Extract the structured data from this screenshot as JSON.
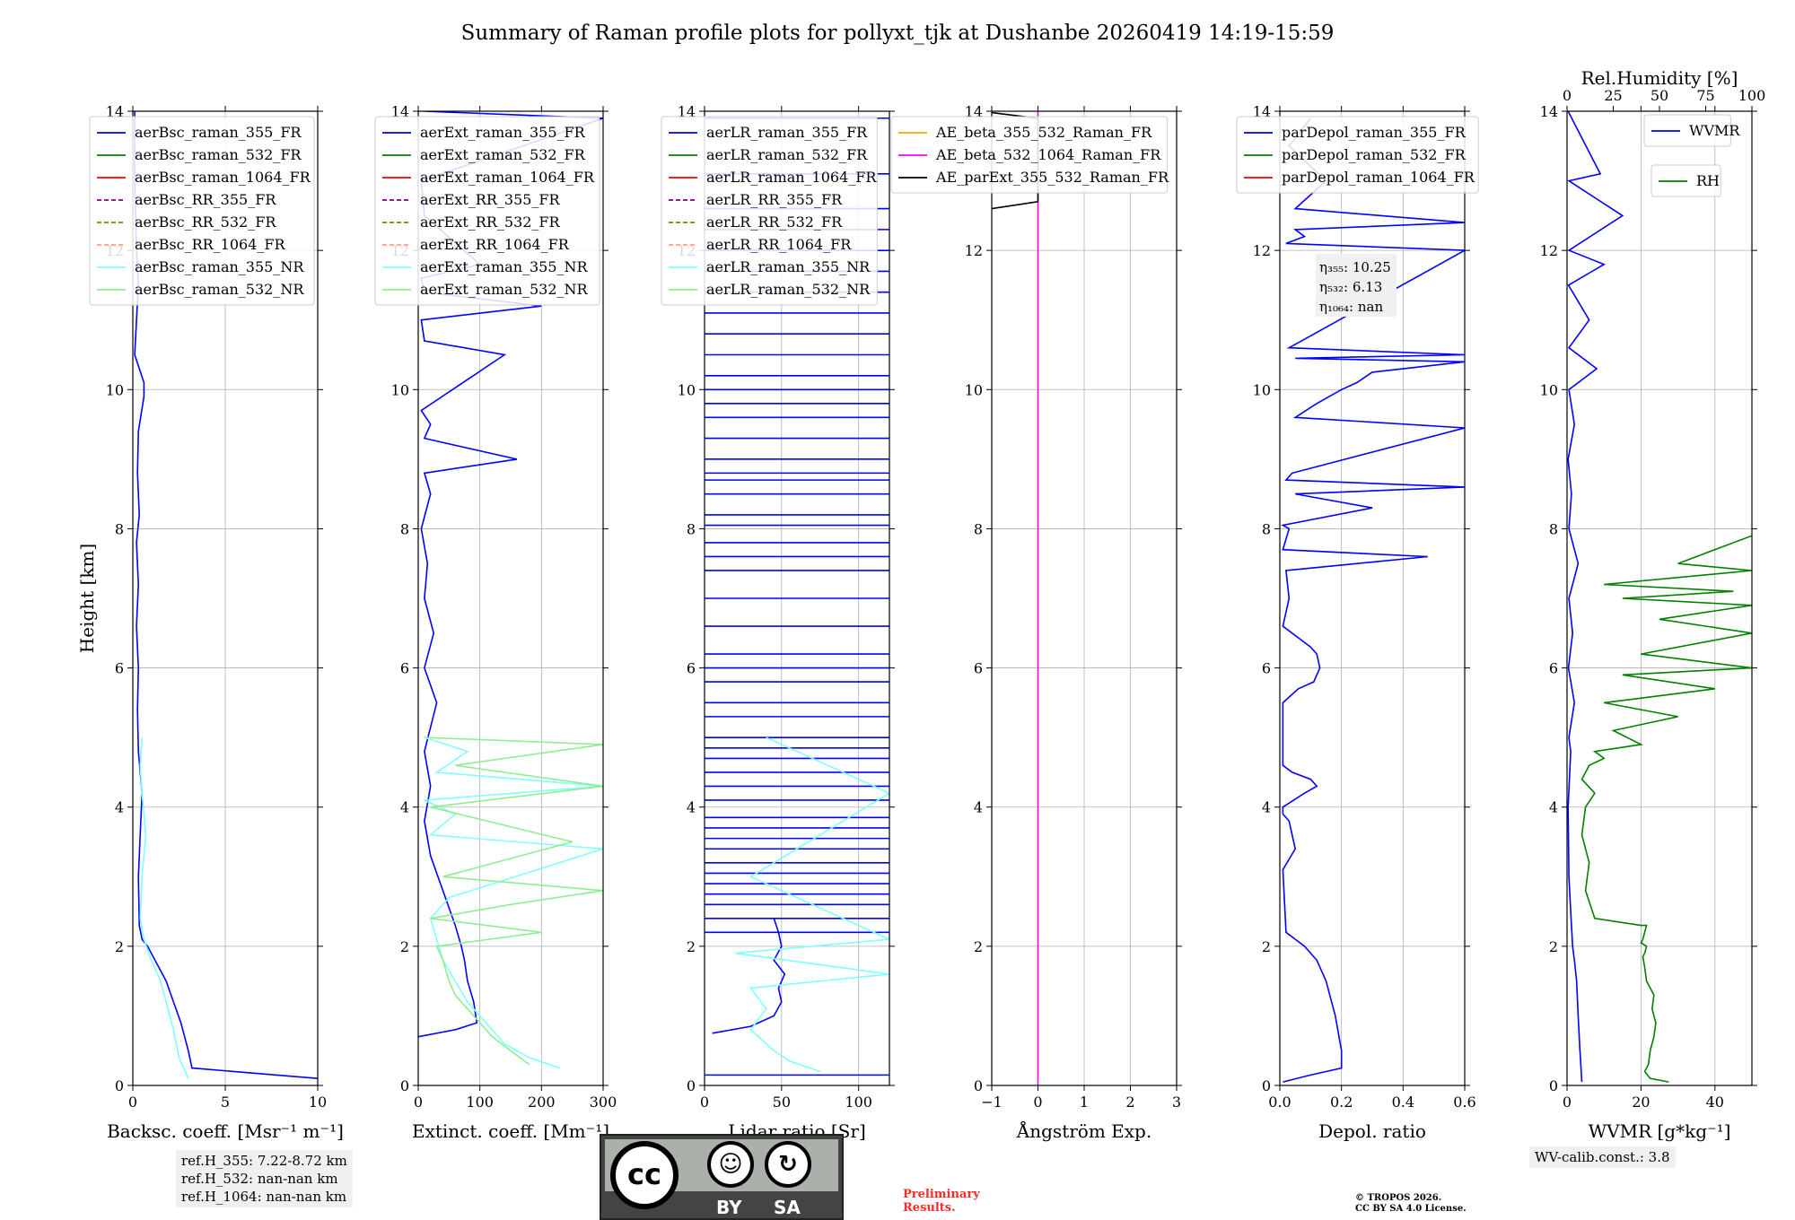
{
  "title": "Summary of Raman profile plots for pollyxt_tjk at Dushanbe 20260419 14:19-15:59",
  "chart_data": [
    {
      "type": "line",
      "id": "bsc",
      "xlabel": "Backsc. coeff. [Msr⁻¹ m⁻¹]",
      "ylabel": "Height [km]",
      "xlim": [
        0,
        10
      ],
      "xticks": [
        0,
        5,
        10
      ],
      "ylim": [
        0,
        14
      ],
      "yticks": [
        0,
        2,
        4,
        6,
        8,
        10,
        12,
        14
      ],
      "legend": [
        "aerBsc_raman_355_FR",
        "aerBsc_raman_532_FR",
        "aerBsc_raman_1064_FR",
        "aerBsc_RR_355_FR",
        "aerBsc_RR_532_FR",
        "aerBsc_RR_1064_FR",
        "aerBsc_raman_355_NR",
        "aerBsc_raman_532_NR"
      ],
      "legend_colors": [
        "#0000ff",
        "#008000",
        "#ff0000",
        "#800080",
        "#808000",
        "#ffa07a",
        "#7fffff",
        "#90ee90"
      ],
      "legend_dashed": [
        false,
        false,
        false,
        true,
        true,
        true,
        false,
        false
      ],
      "series": [
        {
          "name": "aerBsc_raman_355_FR",
          "color": "#0000ff",
          "x": [
            10,
            3.2,
            3.0,
            2.6,
            2.2,
            1.8,
            1.2,
            0.8,
            0.5,
            0.35,
            0.3,
            0.4,
            0.5,
            0.3,
            0.25,
            0.3,
            0.2,
            0.3,
            0.2,
            0.35,
            0.25,
            0.3,
            0.6,
            0.6,
            0.1,
            0.2,
            0.3,
            0.2,
            0.1,
            0.1
          ],
          "y": [
            0.1,
            0.25,
            0.5,
            0.9,
            1.2,
            1.5,
            1.8,
            2.0,
            2.1,
            2.3,
            3.0,
            3.6,
            4.2,
            4.8,
            5.4,
            6.0,
            6.6,
            7.2,
            7.8,
            8.2,
            8.8,
            9.4,
            9.9,
            10.1,
            10.5,
            11.0,
            11.5,
            12.0,
            13.0,
            14.0
          ]
        },
        {
          "name": "aerBsc_raman_355_NR",
          "color": "#7fffff",
          "x": [
            3.0,
            2.5,
            2.2,
            1.8,
            1.5,
            1.0,
            0.6,
            0.4,
            0.5,
            0.7,
            0.5,
            0.4,
            0.5
          ],
          "y": [
            0.1,
            0.4,
            0.8,
            1.2,
            1.5,
            1.8,
            2.1,
            2.4,
            3.0,
            3.6,
            4.2,
            4.6,
            5.0
          ]
        }
      ]
    },
    {
      "type": "line",
      "id": "ext",
      "xlabel": "Extinct. coeff. [Mm⁻¹]",
      "xlim": [
        0,
        300
      ],
      "xticks": [
        0,
        100,
        200,
        300
      ],
      "ylim": [
        0,
        14
      ],
      "yticks": [
        0,
        2,
        4,
        6,
        8,
        10,
        12,
        14
      ],
      "legend": [
        "aerExt_raman_355_FR",
        "aerExt_raman_532_FR",
        "aerExt_raman_1064_FR",
        "aerExt_RR_355_FR",
        "aerExt_RR_532_FR",
        "aerExt_RR_1064_FR",
        "aerExt_raman_355_NR",
        "aerExt_raman_532_NR"
      ],
      "legend_colors": [
        "#0000ff",
        "#008000",
        "#ff0000",
        "#800080",
        "#808000",
        "#ffa07a",
        "#7fffff",
        "#90ee90"
      ],
      "legend_dashed": [
        false,
        false,
        false,
        true,
        true,
        true,
        false,
        false
      ],
      "series": [
        {
          "name": "aerExt_raman_355_FR",
          "color": "#0000ff",
          "x": [
            0,
            60,
            95,
            90,
            80,
            75,
            70,
            60,
            40,
            20,
            10,
            20,
            10,
            30,
            10,
            25,
            10,
            15,
            5,
            20,
            10,
            160,
            10,
            20,
            5,
            140,
            10,
            5,
            200,
            10,
            5,
            100,
            10,
            5,
            300,
            10
          ],
          "y": [
            0.7,
            0.8,
            0.9,
            1.2,
            1.5,
            1.8,
            2.0,
            2.3,
            2.8,
            3.3,
            3.8,
            4.3,
            4.8,
            5.5,
            6.0,
            6.5,
            7.0,
            7.5,
            8.0,
            8.5,
            8.8,
            9.0,
            9.3,
            9.5,
            9.7,
            10.5,
            10.7,
            11.0,
            11.2,
            11.4,
            11.6,
            11.8,
            12.5,
            13.0,
            13.9,
            14.0
          ]
        },
        {
          "name": "aerExt_raman_355_NR",
          "color": "#7fffff",
          "x": [
            230,
            180,
            140,
            120,
            100,
            80,
            60,
            40,
            30,
            20,
            50,
            300,
            20,
            60,
            10,
            300,
            30,
            80,
            10
          ],
          "y": [
            0.25,
            0.4,
            0.6,
            0.8,
            1.0,
            1.2,
            1.5,
            1.8,
            2.1,
            2.4,
            2.7,
            3.4,
            3.6,
            3.9,
            4.1,
            4.3,
            4.5,
            4.8,
            5.0
          ]
        },
        {
          "name": "aerExt_raman_532_NR",
          "color": "#90ee90",
          "x": [
            180,
            150,
            120,
            100,
            80,
            60,
            50,
            40,
            30,
            200,
            20,
            150,
            300,
            40,
            250,
            20,
            300,
            60,
            300,
            10
          ],
          "y": [
            0.3,
            0.5,
            0.7,
            0.9,
            1.1,
            1.3,
            1.5,
            1.8,
            2.0,
            2.2,
            2.4,
            2.6,
            2.8,
            3.0,
            3.5,
            4.0,
            4.3,
            4.6,
            4.9,
            5.0
          ]
        }
      ]
    },
    {
      "type": "line",
      "id": "lr",
      "xlabel": "Lidar ratio [Sr]",
      "xlim": [
        0,
        120
      ],
      "xticks": [
        0,
        50,
        100
      ],
      "ylim": [
        0,
        14
      ],
      "yticks": [
        0,
        2,
        4,
        6,
        8,
        10,
        12,
        14
      ],
      "legend": [
        "aerLR_raman_355_FR",
        "aerLR_raman_532_FR",
        "aerLR_raman_1064_FR",
        "aerLR_RR_355_FR",
        "aerLR_RR_532_FR",
        "aerLR_RR_1064_FR",
        "aerLR_raman_355_NR",
        "aerLR_raman_532_NR"
      ],
      "legend_colors": [
        "#0000ff",
        "#008000",
        "#ff0000",
        "#800080",
        "#808000",
        "#ffa07a",
        "#7fffff",
        "#90ee90"
      ],
      "legend_dashed": [
        false,
        false,
        false,
        true,
        true,
        true,
        false,
        false
      ],
      "hlines_355": [
        0.15,
        2.2,
        2.4,
        2.6,
        2.75,
        2.9,
        3.05,
        3.2,
        3.4,
        3.55,
        3.7,
        3.85,
        4.1,
        4.3,
        4.5,
        4.7,
        4.85,
        5.0,
        5.3,
        5.5,
        5.8,
        6.0,
        6.2,
        6.6,
        7.0,
        7.4,
        7.6,
        7.8,
        8.05,
        8.2,
        8.5,
        8.7,
        8.8,
        9.0,
        9.3,
        9.6,
        9.8,
        10.0,
        10.2,
        10.5,
        10.8,
        11.1,
        11.4,
        11.7,
        12.0,
        12.3,
        12.6,
        13.1,
        13.9
      ],
      "series": [
        {
          "name": "aerLR_raman_355_FR",
          "color": "#0000ff",
          "x": [
            5,
            30,
            45,
            50,
            48,
            52,
            45,
            50,
            48,
            45
          ],
          "y": [
            0.75,
            0.85,
            1.0,
            1.2,
            1.4,
            1.6,
            1.8,
            2.0,
            2.2,
            2.4
          ]
        },
        {
          "name": "aerLR_raman_355_NR",
          "color": "#7fffff",
          "x": [
            75,
            55,
            45,
            30,
            40,
            30,
            120,
            20,
            120,
            30,
            120,
            40
          ],
          "y": [
            0.2,
            0.35,
            0.5,
            0.8,
            1.1,
            1.4,
            1.6,
            1.9,
            2.1,
            3.0,
            4.2,
            5.0
          ]
        }
      ]
    },
    {
      "type": "line",
      "id": "ae",
      "xlabel": "Ångström Exp.",
      "xlim": [
        -1,
        3
      ],
      "xticks": [
        -1,
        0,
        1,
        2,
        3
      ],
      "ylim": [
        0,
        14
      ],
      "yticks": [
        0,
        2,
        4,
        6,
        8,
        10,
        12,
        14
      ],
      "legend": [
        "AE_beta_355_532_Raman_FR",
        "AE_beta_532_1064_Raman_FR",
        "AE_parExt_355_532_Raman_FR"
      ],
      "legend_colors": [
        "#ffa500",
        "#ff00ff",
        "#000000"
      ],
      "legend_dashed": [
        false,
        false,
        false
      ],
      "series": [
        {
          "name": "AE_beta_532_1064_Raman_FR",
          "color": "#ff00ff",
          "x": [
            0,
            0
          ],
          "y": [
            0,
            14
          ]
        },
        {
          "name": "AE_parExt_355_532_Raman_FR",
          "color": "#000000",
          "x": [
            -1,
            0,
            0,
            0,
            -1
          ],
          "y": [
            12.6,
            12.7,
            13.0,
            13.9,
            13.98
          ]
        }
      ]
    },
    {
      "type": "line",
      "id": "depol",
      "xlabel": "Depol. ratio",
      "xlim": [
        0,
        0.6
      ],
      "xticks": [
        0.0,
        0.2,
        0.4,
        0.6
      ],
      "xtick_labels": [
        "0.0",
        "0.2",
        "0.4",
        "0.6"
      ],
      "ylim": [
        0,
        14
      ],
      "yticks": [
        0,
        2,
        4,
        6,
        8,
        10,
        12,
        14
      ],
      "legend": [
        "parDepol_raman_355_FR",
        "parDepol_raman_532_FR",
        "parDepol_raman_1064_FR"
      ],
      "legend_colors": [
        "#0000ff",
        "#008000",
        "#ff0000"
      ],
      "legend_dashed": [
        false,
        false,
        false
      ],
      "annotation": {
        "l1": "η₃₅₅: 10.25",
        "l2": "η₅₃₂: 6.13",
        "l3": "η₁₀₆₄: nan"
      },
      "series": [
        {
          "name": "parDepol_raman_355_FR",
          "color": "#0000ff",
          "x": [
            0.01,
            0.1,
            0.2,
            0.2,
            0.18,
            0.15,
            0.12,
            0.08,
            0.05,
            0.02,
            0.01,
            0.05,
            0.04,
            0.03,
            0.01,
            0.01,
            0.08,
            0.12,
            0.1,
            0.04,
            0.01,
            0.01,
            0.06,
            0.11,
            0.13,
            0.12,
            0.1,
            0.07,
            0.04,
            0.01,
            0.03,
            0.02,
            0.48,
            0.01,
            0.03,
            0.01,
            0.3,
            0.05,
            0.6,
            0.02,
            0.04,
            0.6,
            0.05,
            0.12,
            0.2,
            0.25,
            0.3,
            0.6,
            0.05,
            0.6,
            0.03,
            0.6,
            0.02,
            0.08,
            0.05,
            0.6,
            0.05,
            0.15,
            0.03,
            0.1
          ],
          "y": [
            0.05,
            0.15,
            0.25,
            0.5,
            1.0,
            1.5,
            1.8,
            2.0,
            2.1,
            2.2,
            3.1,
            3.4,
            3.6,
            3.8,
            3.9,
            4.0,
            4.2,
            4.3,
            4.4,
            4.5,
            4.6,
            5.5,
            5.7,
            5.8,
            6.0,
            6.2,
            6.3,
            6.4,
            6.5,
            6.6,
            7.0,
            7.4,
            7.6,
            7.7,
            8.0,
            8.05,
            8.3,
            8.5,
            8.6,
            8.7,
            8.8,
            9.45,
            9.6,
            9.8,
            10.0,
            10.1,
            10.25,
            10.4,
            10.45,
            10.5,
            10.6,
            12.0,
            12.1,
            12.2,
            12.3,
            12.4,
            12.6,
            13.0,
            13.5,
            13.9
          ]
        }
      ]
    },
    {
      "type": "line",
      "id": "wv",
      "xlabel": "WVMR [g*kg⁻¹]",
      "x2label": "Rel.Humidity [%]",
      "xlim": [
        0,
        50
      ],
      "xticks": [
        0,
        20,
        40
      ],
      "x2lim": [
        0,
        100
      ],
      "x2ticks": [
        0,
        25,
        50,
        75,
        100
      ],
      "ylim": [
        0,
        14
      ],
      "yticks": [
        0,
        2,
        4,
        6,
        8,
        10,
        12,
        14
      ],
      "legend": [
        "WVMR"
      ],
      "legend_colors": [
        "#0000ff"
      ],
      "legend2": [
        "RH"
      ],
      "legend2_colors": [
        "#008000"
      ],
      "series": [
        {
          "name": "WVMR",
          "color": "#0000ff",
          "x": [
            4,
            3.5,
            3,
            2.6,
            2,
            1.5,
            1,
            0.5,
            0.3,
            1,
            0.5,
            2,
            0.4,
            1.5,
            0.5,
            3,
            0.5,
            1.2,
            0.3,
            2,
            0.5,
            8,
            0.5,
            6,
            0.4,
            10,
            0.5,
            15,
            0.5,
            9,
            0.3
          ],
          "y": [
            0.05,
            0.5,
            1.0,
            1.5,
            1.8,
            2.0,
            2.5,
            3.0,
            4.0,
            4.8,
            5.0,
            5.5,
            6.0,
            6.5,
            7.0,
            7.5,
            8.0,
            8.5,
            9.0,
            9.5,
            10.0,
            10.3,
            10.6,
            11.0,
            11.5,
            11.8,
            12.0,
            12.5,
            13.0,
            13.1,
            14.0
          ]
        },
        {
          "name": "RH",
          "color": "#008000",
          "axis": "x2",
          "x": [
            55,
            45,
            42,
            44,
            45,
            47,
            48,
            46,
            47,
            43,
            42,
            41,
            42,
            43,
            40,
            41,
            42,
            43,
            40,
            15,
            10,
            12,
            8,
            10,
            15,
            8,
            12,
            20,
            15,
            40,
            25,
            60,
            20,
            80,
            30,
            100,
            40,
            100,
            50,
            100,
            30,
            90,
            20,
            100,
            60,
            100
          ],
          "y": [
            0.05,
            0.1,
            0.2,
            0.3,
            0.5,
            0.7,
            0.9,
            1.1,
            1.3,
            1.5,
            1.7,
            1.85,
            1.9,
            2.0,
            2.05,
            2.1,
            2.2,
            2.3,
            2.3,
            2.4,
            2.8,
            3.2,
            3.6,
            4.0,
            4.2,
            4.4,
            4.6,
            4.7,
            4.8,
            4.9,
            5.1,
            5.3,
            5.5,
            5.7,
            5.9,
            6.0,
            6.2,
            6.5,
            6.7,
            6.9,
            7.0,
            7.1,
            7.2,
            7.4,
            7.5,
            7.9
          ]
        }
      ]
    }
  ],
  "refbox": {
    "l1": "ref.H_355: 7.22-8.72 km",
    "l2": "ref.H_532: nan-nan km",
    "l3": "ref.H_1064: nan-nan km"
  },
  "wvbox": "WV-calib.const.: 3.8",
  "license": {
    "cc": "cc",
    "by": "BY",
    "sa": "SA",
    "by_icon": "☺",
    "sa_icon": "↻"
  },
  "preliminary": {
    "l1": "Preliminary",
    "l2": "Results."
  },
  "copyright": {
    "l1": "© TROPOS 2026.",
    "l2": "CC BY SA 4.0 License."
  }
}
